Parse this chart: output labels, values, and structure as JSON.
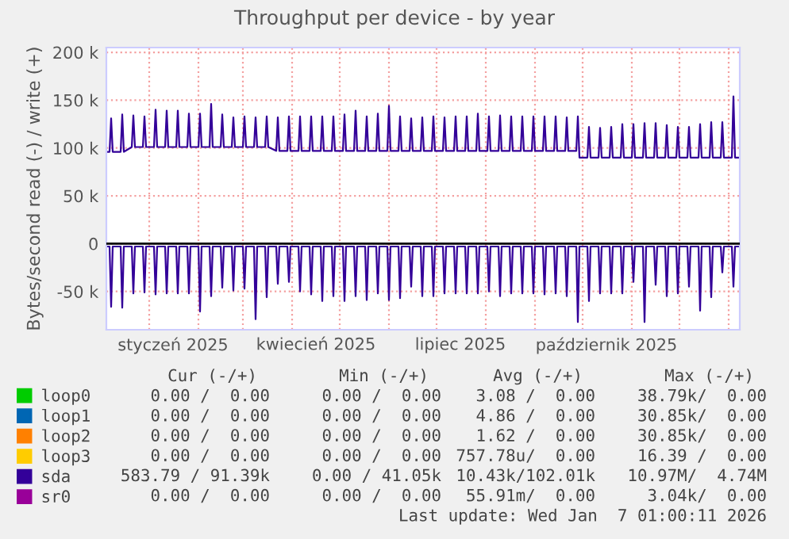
{
  "chart_data": {
    "type": "line",
    "title": "Throughput per device - by year",
    "ylabel": "Bytes/second read (-) / write (+)",
    "xlim": [
      "2024-12-05",
      "2026-01-08"
    ],
    "xticks": [
      {
        "value": "2025-01-01",
        "label": null
      },
      {
        "value": "2025-02-01",
        "label": null
      },
      {
        "value": "2025-03-01",
        "label": null
      },
      {
        "value": "2025-04-01",
        "label": null
      },
      {
        "value": "2025-05-01",
        "label": null
      },
      {
        "value": "2025-06-01",
        "label": null
      },
      {
        "value": "2025-07-01",
        "label": null
      },
      {
        "value": "2025-08-01",
        "label": null
      },
      {
        "value": "2025-09-01",
        "label": null
      },
      {
        "value": "2025-10-01",
        "label": null
      },
      {
        "value": "2025-11-01",
        "label": null
      },
      {
        "value": "2025-12-01",
        "label": null
      },
      {
        "value": "2026-01-01",
        "label": null
      },
      {
        "value": "2025-01-16",
        "label": "styczeń 2025"
      },
      {
        "value": "2025-04-16",
        "label": "kwiecień 2025"
      },
      {
        "value": "2025-07-16",
        "label": "lipiec 2025"
      },
      {
        "value": "2025-10-16",
        "label": "październik 2025"
      }
    ],
    "ylim": [
      -90000,
      205000
    ],
    "yticks": [
      {
        "value": -50000,
        "label": "-50 k"
      },
      0,
      {
        "value": 50000,
        "label": "50 k"
      },
      {
        "value": 100000,
        "label": "100 k"
      },
      {
        "value": 150000,
        "label": "150 k"
      },
      {
        "value": 200000,
        "label": "200 k"
      }
    ],
    "grid": true,
    "legend": "bottom left",
    "ref_lines": [
      {
        "axis": "y",
        "value": 0,
        "color": "#000000"
      }
    ],
    "x": [
      "2024-12-05",
      "2024-12-07",
      "2024-12-08",
      "2024-12-09",
      "2024-12-14",
      "2024-12-15",
      "2024-12-16",
      "2024-12-21",
      "2024-12-22",
      "2024-12-23",
      "2024-12-28",
      "2024-12-29",
      "2024-12-30",
      "2025-01-04",
      "2025-01-05",
      "2025-01-06",
      "2025-01-11",
      "2025-01-12",
      "2025-01-13",
      "2025-01-18",
      "2025-01-19",
      "2025-01-20",
      "2025-01-25",
      "2025-01-26",
      "2025-01-27",
      "2025-02-01",
      "2025-02-02",
      "2025-02-03",
      "2025-02-08",
      "2025-02-09",
      "2025-02-10",
      "2025-02-15",
      "2025-02-16",
      "2025-02-17",
      "2025-02-22",
      "2025-02-23",
      "2025-02-24",
      "2025-03-01",
      "2025-03-02",
      "2025-03-03",
      "2025-03-08",
      "2025-03-09",
      "2025-03-10",
      "2025-03-15",
      "2025-03-16",
      "2025-03-17",
      "2025-03-22",
      "2025-03-23",
      "2025-03-24",
      "2025-03-29",
      "2025-03-30",
      "2025-03-31",
      "2025-04-05",
      "2025-04-06",
      "2025-04-07",
      "2025-04-12",
      "2025-04-13",
      "2025-04-14",
      "2025-04-19",
      "2025-04-20",
      "2025-04-21",
      "2025-04-26",
      "2025-04-27",
      "2025-04-28",
      "2025-05-03",
      "2025-05-04",
      "2025-05-05",
      "2025-05-10",
      "2025-05-11",
      "2025-05-12",
      "2025-05-17",
      "2025-05-18",
      "2025-05-19",
      "2025-05-24",
      "2025-05-25",
      "2025-05-26",
      "2025-05-31",
      "2025-06-01",
      "2025-06-02",
      "2025-06-07",
      "2025-06-08",
      "2025-06-09",
      "2025-06-14",
      "2025-06-15",
      "2025-06-16",
      "2025-06-21",
      "2025-06-22",
      "2025-06-23",
      "2025-06-28",
      "2025-06-29",
      "2025-06-30",
      "2025-07-05",
      "2025-07-06",
      "2025-07-07",
      "2025-07-12",
      "2025-07-13",
      "2025-07-14",
      "2025-07-19",
      "2025-07-20",
      "2025-07-21",
      "2025-07-26",
      "2025-07-27",
      "2025-07-28",
      "2025-08-02",
      "2025-08-03",
      "2025-08-04",
      "2025-08-09",
      "2025-08-10",
      "2025-08-11",
      "2025-08-16",
      "2025-08-17",
      "2025-08-18",
      "2025-08-23",
      "2025-08-24",
      "2025-08-25",
      "2025-08-30",
      "2025-08-31",
      "2025-09-01",
      "2025-09-06",
      "2025-09-07",
      "2025-09-08",
      "2025-09-13",
      "2025-09-14",
      "2025-09-15",
      "2025-09-20",
      "2025-09-21",
      "2025-09-22",
      "2025-09-27",
      "2025-09-28",
      "2025-09-29",
      "2025-10-04",
      "2025-10-05",
      "2025-10-06",
      "2025-10-11",
      "2025-10-12",
      "2025-10-13",
      "2025-10-18",
      "2025-10-19",
      "2025-10-20",
      "2025-10-25",
      "2025-10-26",
      "2025-10-27",
      "2025-11-01",
      "2025-11-02",
      "2025-11-03",
      "2025-11-08",
      "2025-11-09",
      "2025-11-10",
      "2025-11-15",
      "2025-11-16",
      "2025-11-17",
      "2025-11-22",
      "2025-11-23",
      "2025-11-24",
      "2025-11-29",
      "2025-11-30",
      "2025-12-01",
      "2025-12-06",
      "2025-12-07",
      "2025-12-08",
      "2025-12-13",
      "2025-12-14",
      "2025-12-15",
      "2025-12-20",
      "2025-12-21",
      "2025-12-22",
      "2025-12-27",
      "2025-12-28",
      "2025-12-29",
      "2026-01-03",
      "2026-01-04",
      "2026-01-05",
      "2026-01-07"
    ],
    "series": [
      {
        "name": "loop0",
        "color": "#00cc00",
        "values": [
          null,
          null,
          null,
          null,
          null,
          null,
          null,
          null,
          null,
          null,
          null,
          null,
          null,
          null,
          null,
          null,
          null,
          null,
          null,
          null,
          null,
          null,
          null,
          null,
          null,
          null,
          null,
          null,
          null,
          null,
          null,
          null,
          null,
          null,
          null,
          null,
          null,
          null,
          null,
          null,
          null,
          null,
          null,
          null,
          null,
          null,
          null,
          null,
          null,
          null,
          null,
          null,
          null,
          null,
          null,
          null,
          null,
          null,
          null,
          null,
          null,
          null,
          null,
          null,
          null,
          null,
          null,
          null,
          null,
          null,
          null,
          null,
          null,
          null,
          null,
          null,
          null,
          null,
          null,
          null,
          null,
          null,
          null,
          null,
          null,
          null,
          null,
          null,
          null,
          null,
          null,
          null,
          null,
          null,
          null,
          null,
          null,
          null,
          null,
          null,
          null,
          null,
          null,
          null,
          null,
          null,
          null,
          null,
          null,
          null,
          null,
          null,
          null,
          null,
          null,
          null,
          null,
          null,
          null,
          null,
          null,
          null,
          null,
          null,
          null,
          null,
          null,
          null,
          null,
          null,
          null,
          null,
          null,
          null,
          null,
          null,
          null,
          null,
          null,
          null,
          null,
          null,
          null,
          null,
          null,
          null,
          null,
          null,
          null,
          null,
          null,
          null,
          null,
          null,
          null,
          null,
          null,
          null,
          null,
          null,
          null,
          null,
          null,
          null,
          null,
          null,
          null,
          null,
          null,
          null,
          null,
          null,
          null
        ]
      },
      {
        "name": "loop1",
        "color": "#0066b3",
        "values": [
          null,
          null,
          null,
          null,
          null,
          null,
          null,
          null,
          null,
          null,
          null,
          null,
          null,
          null,
          null,
          null,
          null,
          null,
          null,
          null,
          null,
          null,
          null,
          null,
          null,
          null,
          null,
          null,
          null,
          null,
          null,
          null,
          null,
          null,
          null,
          null,
          null,
          null,
          null,
          null,
          null,
          null,
          null,
          null,
          null,
          null,
          null,
          null,
          null,
          null,
          null,
          null,
          null,
          null,
          null,
          null,
          null,
          null,
          null,
          null,
          null,
          null,
          null,
          null,
          null,
          null,
          null,
          null,
          null,
          null,
          null,
          null,
          null,
          null,
          null,
          null,
          null,
          null,
          null,
          null,
          null,
          null,
          null,
          null,
          null,
          null,
          null,
          null,
          null,
          null,
          null,
          null,
          null,
          null,
          null,
          null,
          null,
          null,
          null,
          null,
          null,
          null,
          null,
          null,
          null,
          null,
          null,
          null,
          null,
          null,
          null,
          null,
          null,
          null,
          null,
          null,
          null,
          null,
          null,
          null,
          null,
          null,
          null,
          null,
          null,
          null,
          null,
          null,
          null,
          null,
          null,
          null,
          null,
          null,
          null,
          null,
          null,
          null,
          null,
          null,
          null,
          null,
          null,
          null,
          null,
          null,
          null,
          null,
          null,
          null,
          null,
          null,
          null,
          null,
          null,
          null,
          null,
          null,
          null,
          null,
          null,
          null,
          null,
          null,
          null,
          null,
          null,
          null,
          null,
          null,
          null,
          null,
          null
        ]
      },
      {
        "name": "loop2",
        "color": "#ff8000",
        "values": [
          null,
          null,
          null,
          null,
          null,
          null,
          null,
          null,
          null,
          null,
          null,
          null,
          null,
          null,
          null,
          null,
          null,
          null,
          null,
          null,
          null,
          null,
          null,
          null,
          null,
          null,
          null,
          null,
          null,
          null,
          null,
          null,
          null,
          null,
          null,
          null,
          null,
          null,
          null,
          null,
          null,
          null,
          null,
          null,
          null,
          null,
          null,
          null,
          null,
          null,
          null,
          null,
          null,
          null,
          null,
          null,
          null,
          null,
          null,
          null,
          null,
          null,
          null,
          null,
          null,
          null,
          null,
          null,
          null,
          null,
          null,
          null,
          null,
          null,
          null,
          null,
          null,
          null,
          null,
          null,
          null,
          null,
          null,
          null,
          null,
          null,
          null,
          null,
          null,
          null,
          null,
          null,
          null,
          null,
          null,
          null,
          null,
          null,
          null,
          null,
          null,
          null,
          null,
          null,
          null,
          null,
          null,
          null,
          null,
          null,
          null,
          null,
          null,
          null,
          null,
          null,
          null,
          null,
          null,
          null,
          null,
          null,
          null,
          null,
          null,
          null,
          null,
          null,
          null,
          null,
          null,
          null,
          null,
          null,
          null,
          null,
          null,
          null,
          null,
          null,
          null,
          null,
          null,
          null,
          null,
          null,
          null,
          null,
          null,
          null,
          null,
          null,
          null,
          null,
          null,
          null,
          null,
          null,
          null,
          null,
          null,
          null,
          null,
          null,
          null,
          null,
          null,
          null,
          null,
          null,
          null,
          null,
          null
        ]
      },
      {
        "name": "loop3",
        "color": "#ffcc00",
        "values": [
          null,
          null,
          null,
          null,
          null,
          null,
          null,
          null,
          null,
          null,
          null,
          null,
          null,
          null,
          null,
          null,
          null,
          null,
          null,
          null,
          null,
          null,
          null,
          null,
          null,
          null,
          null,
          null,
          null,
          null,
          null,
          null,
          null,
          null,
          null,
          null,
          null,
          null,
          null,
          null,
          null,
          null,
          null,
          null,
          null,
          null,
          null,
          null,
          null,
          null,
          null,
          null,
          null,
          null,
          null,
          null,
          null,
          null,
          null,
          null,
          null,
          null,
          null,
          null,
          null,
          null,
          null,
          null,
          null,
          null,
          null,
          null,
          null,
          null,
          null,
          null,
          null,
          null,
          null,
          null,
          null,
          null,
          null,
          null,
          null,
          null,
          null,
          null,
          null,
          null,
          null,
          null,
          null,
          null,
          null,
          null,
          null,
          null,
          null,
          null,
          null,
          null,
          null,
          null,
          null,
          null,
          null,
          null,
          null,
          null,
          null,
          null,
          null,
          null,
          null,
          null,
          null,
          null,
          null,
          null,
          null,
          null,
          null,
          null,
          null,
          null,
          null,
          null,
          null,
          null,
          null,
          null,
          null,
          null,
          null,
          null,
          null,
          null,
          null,
          null,
          null,
          null,
          null,
          null,
          null,
          null,
          null,
          null,
          null,
          null,
          null,
          null,
          null,
          null,
          null,
          null,
          null,
          null,
          null,
          null,
          null,
          null,
          null,
          null,
          null,
          null,
          null,
          null,
          null,
          null,
          null,
          null,
          null
        ]
      },
      {
        "name": "sda",
        "color": "#330099",
        "values": [
          96000,
          96000,
          131000,
          96000,
          96000,
          135000,
          96000,
          101000,
          134000,
          101000,
          101000,
          133000,
          101000,
          101000,
          140000,
          101000,
          101000,
          139000,
          101000,
          101000,
          139000,
          101000,
          101000,
          136000,
          101000,
          101000,
          136000,
          101000,
          101000,
          146000,
          101000,
          101000,
          135000,
          101000,
          101000,
          132000,
          101000,
          101000,
          133000,
          101000,
          101000,
          132000,
          101000,
          101000,
          133000,
          101000,
          97000,
          132000,
          97000,
          97000,
          133000,
          97000,
          97000,
          133000,
          97000,
          97000,
          133000,
          97000,
          97000,
          133000,
          97000,
          97000,
          133000,
          97000,
          97000,
          135000,
          97000,
          97000,
          139000,
          97000,
          97000,
          133000,
          97000,
          97000,
          136000,
          97000,
          97000,
          144000,
          97000,
          97000,
          133000,
          97000,
          97000,
          131000,
          97000,
          97000,
          132000,
          97000,
          97000,
          133000,
          97000,
          97000,
          132000,
          97000,
          97000,
          133000,
          97000,
          97000,
          133000,
          97000,
          97000,
          136000,
          97000,
          97000,
          133000,
          97000,
          97000,
          134000,
          97000,
          97000,
          133000,
          97000,
          97000,
          133000,
          97000,
          97000,
          133000,
          97000,
          97000,
          133000,
          97000,
          97000,
          133000,
          97000,
          97000,
          132000,
          97000,
          97000,
          133000,
          90000,
          90000,
          122000,
          90000,
          90000,
          121000,
          90000,
          90000,
          122000,
          90000,
          90000,
          125000,
          90000,
          90000,
          125000,
          90000,
          90000,
          126000,
          90000,
          90000,
          126000,
          90000,
          90000,
          124000,
          90000,
          90000,
          122000,
          90000,
          90000,
          122000,
          90000,
          90000,
          125000,
          90000,
          90000,
          127000,
          90000,
          90000,
          127000,
          90000,
          90000,
          154000,
          90000,
          90000
        ]
      },
      {
        "color": "#330099",
        "values": [
          -3000,
          -3000,
          -66000,
          -3000,
          -3000,
          -67000,
          -3000,
          -3000,
          -52000,
          -3000,
          -3000,
          -51000,
          -3000,
          -3000,
          -53000,
          -3000,
          -3000,
          -52000,
          -3000,
          -3000,
          -52000,
          -3000,
          -3000,
          -52000,
          -3000,
          -3000,
          -71000,
          -3000,
          -3000,
          -55000,
          -3000,
          -3000,
          -46000,
          -3000,
          -3000,
          -49000,
          -3000,
          -3000,
          -47000,
          -3000,
          -3000,
          -79000,
          -3000,
          -3000,
          -56000,
          -3000,
          -3000,
          -42000,
          -3000,
          -3000,
          -40000,
          -3000,
          -3000,
          -50000,
          -3000,
          -3000,
          -53000,
          -3000,
          -3000,
          -60000,
          -3000,
          -3000,
          -55000,
          -3000,
          -3000,
          -60000,
          -3000,
          -3000,
          -55000,
          -3000,
          -3000,
          -59000,
          -3000,
          -3000,
          -52000,
          -3000,
          -3000,
          -59000,
          -3000,
          -3000,
          -57000,
          -3000,
          -3000,
          -45000,
          -3000,
          -3000,
          -55000,
          -3000,
          -3000,
          -55000,
          -3000,
          -3000,
          -52000,
          -3000,
          -3000,
          -52000,
          -3000,
          -3000,
          -52000,
          -3000,
          -3000,
          -52000,
          -3000,
          -3000,
          -50000,
          -3000,
          -3000,
          -55000,
          -3000,
          -3000,
          -52000,
          -3000,
          -3000,
          -52000,
          -3000,
          -3000,
          -52000,
          -3000,
          -3000,
          -53000,
          -3000,
          -3000,
          -52000,
          -3000,
          -3000,
          -55000,
          -3000,
          -3000,
          -82000,
          -3000,
          -3000,
          -60000,
          -3000,
          -3000,
          -52000,
          -3000,
          -3000,
          -52000,
          -3000,
          -3000,
          -52000,
          -3000,
          -3000,
          -40000,
          -3000,
          -3000,
          -82000,
          -3000,
          -3000,
          -43000,
          -3000,
          -3000,
          -55000,
          -3000,
          -3000,
          -52000,
          -3000,
          -3000,
          -45000,
          -3000,
          -3000,
          -70000,
          -3000,
          -3000,
          -56000,
          -3000,
          -3000,
          -30000,
          -3000,
          -3000,
          -45000,
          -3000,
          -3000
        ]
      },
      {
        "name": "sr0",
        "color": "#990099",
        "values": [
          null,
          null,
          null,
          null,
          null,
          null,
          null,
          null,
          null,
          null,
          null,
          null,
          null,
          null,
          null,
          null,
          null,
          null,
          null,
          null,
          null,
          null,
          null,
          null,
          null,
          null,
          null,
          null,
          null,
          null,
          null,
          null,
          null,
          null,
          null,
          null,
          null,
          null,
          null,
          null,
          null,
          null,
          null,
          null,
          null,
          null,
          null,
          null,
          null,
          null,
          null,
          null,
          null,
          null,
          null,
          null,
          null,
          null,
          null,
          null,
          null,
          null,
          null,
          null,
          null,
          null,
          null,
          null,
          null,
          null,
          null,
          null,
          null,
          null,
          null,
          null,
          null,
          null,
          null,
          null,
          null,
          null,
          null,
          null,
          null,
          null,
          null,
          null,
          null,
          null,
          null,
          null,
          null,
          null,
          null,
          null,
          null,
          null,
          null,
          null,
          null,
          null,
          null,
          null,
          null,
          null,
          null,
          null,
          null,
          null,
          null,
          null,
          null,
          null,
          null,
          null,
          null,
          null,
          null,
          null,
          null,
          null,
          null,
          null,
          null,
          null,
          null,
          null,
          null,
          null,
          null,
          null,
          null,
          null,
          null,
          null,
          null,
          null,
          null,
          null,
          null,
          null,
          null,
          null,
          null,
          null,
          null,
          null,
          null,
          null,
          null,
          null,
          null,
          null,
          null,
          null,
          null,
          null,
          null,
          null,
          null,
          null,
          null,
          null,
          null,
          null,
          null,
          null,
          null,
          null,
          null,
          null,
          null
        ]
      }
    ],
    "annotations": [
      "Cur (-/+)",
      "Min (-/+)",
      "Avg (-/+)",
      "Max (-/+)",
      "0.00 /  0.00",
      "0.00 /  0.00",
      "3.08 /  0.00",
      "38.79k/  0.00",
      "0.00 /  0.00",
      "0.00 /  0.00",
      "4.86 /  0.00",
      "30.85k/  0.00",
      "0.00 /  0.00",
      "0.00 /  0.00",
      "1.62 /  0.00",
      "30.85k/  0.00",
      "0.00 /  0.00",
      "0.00 /  0.00",
      "757.78u/  0.00",
      "16.39 /  0.00",
      "583.79 / 91.39k",
      "0.00 / 41.05k",
      "10.43k/102.01k",
      "10.97M/  4.74M",
      "0.00 /  0.00",
      "0.00 /  0.00",
      "55.91m/  0.00",
      "3.04k/  0.00",
      "Last update: Wed Jan  7 01:00:11 2026"
    ]
  }
}
